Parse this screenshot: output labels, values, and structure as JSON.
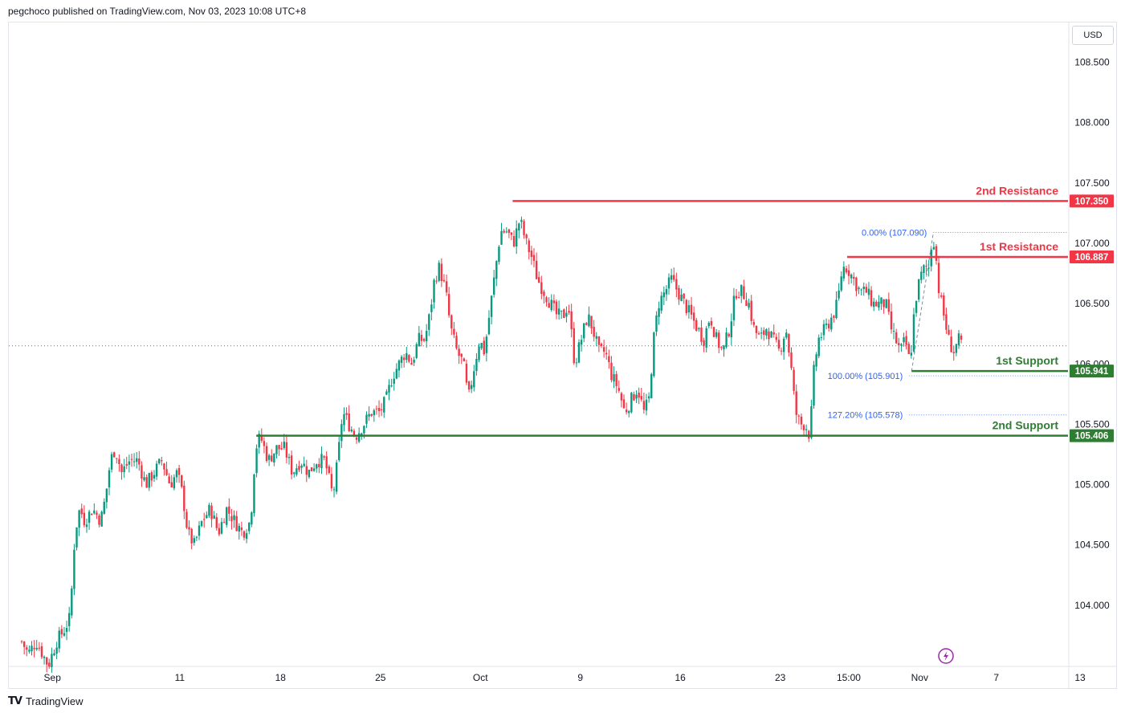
{
  "header": {
    "published": "pegchoco published on TradingView.com, Nov 03, 2023 10:08 UTC+8"
  },
  "footer": {
    "brand": "TradingView",
    "logo": "tradingview-logo-icon"
  },
  "currency": "USD",
  "colors": {
    "up": "#089981",
    "down": "#f23645",
    "resistance": "#f23645",
    "support": "#2e7d32",
    "fib": "#2962ff",
    "last_price": "#f23645",
    "flash": "#9c27b0"
  },
  "chart_data": {
    "type": "candlestick",
    "symbol_currency": "USD",
    "ylim": [
      103.5,
      108.83
    ],
    "yticks": [
      108.5,
      108.0,
      107.5,
      107.0,
      106.5,
      106.0,
      105.5,
      105.0,
      104.5,
      104.0
    ],
    "ytick_labels": [
      "108.500",
      "108.000",
      "107.500",
      "107.000",
      "106.500",
      "106.000",
      "105.500",
      "105.000",
      "104.500",
      "104.000"
    ],
    "x_range": [
      -4,
      1310
    ],
    "xticks": [
      {
        "label": "Sep",
        "x": 50
      },
      {
        "label": "11",
        "x": 208
      },
      {
        "label": "18",
        "x": 333
      },
      {
        "label": "25",
        "x": 457
      },
      {
        "label": "Oct",
        "x": 581
      },
      {
        "label": "9",
        "x": 705
      },
      {
        "label": "16",
        "x": 829
      },
      {
        "label": "23",
        "x": 953
      },
      {
        "label": "15:00",
        "x": 1038
      },
      {
        "label": "Nov",
        "x": 1126
      },
      {
        "label": "7",
        "x": 1221
      },
      {
        "label": "13",
        "x": 1325
      }
    ],
    "anchors": [
      [
        12,
        103.7
      ],
      [
        20,
        103.6
      ],
      [
        30,
        103.7
      ],
      [
        45,
        103.5
      ],
      [
        55,
        103.7
      ],
      [
        65,
        103.8
      ],
      [
        72,
        103.9
      ],
      [
        78,
        104.6
      ],
      [
        84,
        104.8
      ],
      [
        90,
        104.7
      ],
      [
        100,
        104.8
      ],
      [
        110,
        104.7
      ],
      [
        116,
        104.9
      ],
      [
        122,
        105.2
      ],
      [
        128,
        105.3
      ],
      [
        136,
        105.1
      ],
      [
        146,
        105.2
      ],
      [
        156,
        105.2
      ],
      [
        166,
        105.0
      ],
      [
        176,
        105.1
      ],
      [
        186,
        105.2
      ],
      [
        196,
        105.0
      ],
      [
        205,
        105.1
      ],
      [
        212,
        104.9
      ],
      [
        218,
        104.6
      ],
      [
        226,
        104.5
      ],
      [
        236,
        104.7
      ],
      [
        246,
        104.8
      ],
      [
        256,
        104.6
      ],
      [
        266,
        104.8
      ],
      [
        276,
        104.7
      ],
      [
        286,
        104.6
      ],
      [
        296,
        104.7
      ],
      [
        302,
        105.3
      ],
      [
        308,
        105.4
      ],
      [
        318,
        105.2
      ],
      [
        328,
        105.3
      ],
      [
        338,
        105.3
      ],
      [
        348,
        105.1
      ],
      [
        358,
        105.2
      ],
      [
        368,
        105.1
      ],
      [
        378,
        105.2
      ],
      [
        388,
        105.2
      ],
      [
        398,
        104.9
      ],
      [
        404,
        105.2
      ],
      [
        410,
        105.6
      ],
      [
        418,
        105.5
      ],
      [
        426,
        105.4
      ],
      [
        436,
        105.5
      ],
      [
        446,
        105.6
      ],
      [
        456,
        105.6
      ],
      [
        464,
        105.7
      ],
      [
        472,
        105.9
      ],
      [
        480,
        106.0
      ],
      [
        488,
        106.1
      ],
      [
        496,
        106.0
      ],
      [
        504,
        106.2
      ],
      [
        512,
        106.2
      ],
      [
        518,
        106.4
      ],
      [
        524,
        106.7
      ],
      [
        530,
        106.8
      ],
      [
        538,
        106.6
      ],
      [
        544,
        106.3
      ],
      [
        552,
        106.1
      ],
      [
        560,
        106.0
      ],
      [
        566,
        105.7
      ],
      [
        574,
        106.0
      ],
      [
        580,
        106.2
      ],
      [
        586,
        106.1
      ],
      [
        594,
        106.5
      ],
      [
        600,
        106.8
      ],
      [
        606,
        107.1
      ],
      [
        614,
        107.1
      ],
      [
        622,
        107.0
      ],
      [
        630,
        107.2
      ],
      [
        638,
        107.0
      ],
      [
        644,
        106.9
      ],
      [
        652,
        106.7
      ],
      [
        660,
        106.6
      ],
      [
        668,
        106.5
      ],
      [
        676,
        106.4
      ],
      [
        684,
        106.4
      ],
      [
        690,
        106.5
      ],
      [
        698,
        106.0
      ],
      [
        706,
        106.2
      ],
      [
        714,
        106.4
      ],
      [
        720,
        106.3
      ],
      [
        728,
        106.1
      ],
      [
        736,
        106.1
      ],
      [
        744,
        105.9
      ],
      [
        752,
        105.8
      ],
      [
        760,
        105.6
      ],
      [
        768,
        105.7
      ],
      [
        776,
        105.8
      ],
      [
        784,
        105.6
      ],
      [
        790,
        105.7
      ],
      [
        796,
        106.2
      ],
      [
        802,
        106.5
      ],
      [
        810,
        106.6
      ],
      [
        818,
        106.7
      ],
      [
        826,
        106.6
      ],
      [
        834,
        106.5
      ],
      [
        842,
        106.4
      ],
      [
        850,
        106.3
      ],
      [
        858,
        106.2
      ],
      [
        866,
        106.4
      ],
      [
        874,
        106.2
      ],
      [
        882,
        106.1
      ],
      [
        890,
        106.3
      ],
      [
        898,
        106.6
      ],
      [
        906,
        106.6
      ],
      [
        914,
        106.5
      ],
      [
        920,
        106.3
      ],
      [
        928,
        106.2
      ],
      [
        936,
        106.3
      ],
      [
        944,
        106.2
      ],
      [
        952,
        106.1
      ],
      [
        960,
        106.3
      ],
      [
        966,
        106.0
      ],
      [
        972,
        105.6
      ],
      [
        978,
        105.5
      ],
      [
        984,
        105.5
      ],
      [
        990,
        105.4
      ],
      [
        994,
        105.9
      ],
      [
        1000,
        106.2
      ],
      [
        1010,
        106.3
      ],
      [
        1018,
        106.4
      ],
      [
        1024,
        106.5
      ],
      [
        1030,
        106.8
      ],
      [
        1036,
        106.8
      ],
      [
        1044,
        106.7
      ],
      [
        1052,
        106.6
      ],
      [
        1060,
        106.6
      ],
      [
        1068,
        106.5
      ],
      [
        1076,
        106.5
      ],
      [
        1084,
        106.5
      ],
      [
        1090,
        106.3
      ],
      [
        1096,
        106.2
      ],
      [
        1102,
        106.1
      ],
      [
        1108,
        106.2
      ],
      [
        1114,
        106.0
      ],
      [
        1120,
        106.5
      ],
      [
        1126,
        106.7
      ],
      [
        1132,
        106.8
      ],
      [
        1138,
        106.8
      ],
      [
        1142,
        107.1
      ],
      [
        1146,
        106.9
      ],
      [
        1150,
        106.6
      ],
      [
        1156,
        106.4
      ],
      [
        1162,
        106.2
      ],
      [
        1168,
        106.1
      ],
      [
        1174,
        106.2
      ],
      [
        1178,
        106.15
      ]
    ],
    "last_price": 106.15,
    "levels": [
      {
        "label": "2nd Resistance",
        "price": 107.35,
        "price_label": "107.350",
        "x_start": 621,
        "color": "#f23645"
      },
      {
        "label": "1st Resistance",
        "price": 106.887,
        "price_label": "106.887",
        "x_start": 1036,
        "color": "#f23645"
      },
      {
        "label": "1st Support",
        "price": 105.941,
        "price_label": "105.941",
        "x_start": 1116,
        "color": "#2e7d32"
      },
      {
        "label": "2nd Support",
        "price": 105.406,
        "price_label": "105.406",
        "x_start": 303,
        "color": "#2e7d32"
      }
    ],
    "fib": [
      {
        "label": "0.00% (107.090)",
        "price": 107.09,
        "x_start": 1143
      },
      {
        "label": "100.00% (105.901)",
        "price": 105.901,
        "x_start": 1113
      },
      {
        "label": "127.20% (105.578)",
        "price": 105.578,
        "x_start": 1113
      }
    ],
    "fib_trend": {
      "from": [
        1116,
        105.94
      ],
      "to": [
        1143,
        107.09
      ]
    }
  }
}
